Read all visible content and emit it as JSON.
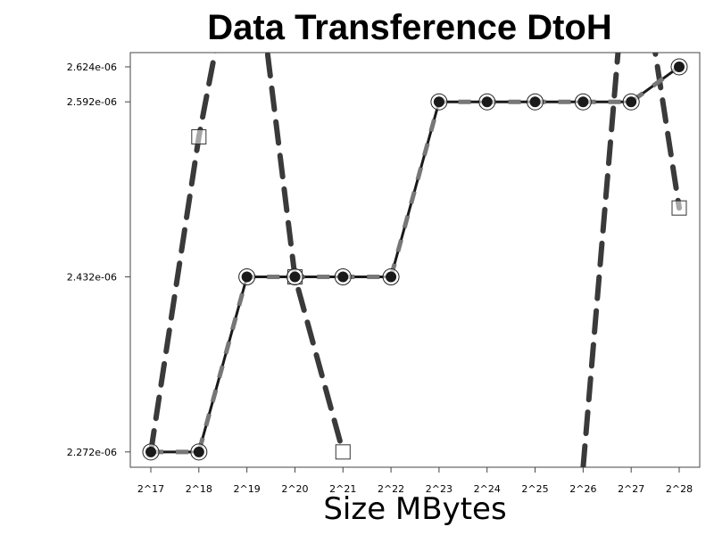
{
  "chart_data": {
    "type": "line",
    "title": "Data Transference DtoH",
    "xlabel": "Size MBytes",
    "ylabel": "",
    "categories": [
      "2^17",
      "2^18",
      "2^19",
      "2^20",
      "2^21",
      "2^22",
      "2^23",
      "2^24",
      "2^25",
      "2^26",
      "2^27",
      "2^28"
    ],
    "yticks": [
      {
        "value": 2.272e-06,
        "label": "2.272e-06"
      },
      {
        "value": 2.432e-06,
        "label": "2.432e-06"
      },
      {
        "value": 2.592e-06,
        "label": "2.592e-06"
      },
      {
        "value": 2.624e-06,
        "label": "2.624e-06"
      }
    ],
    "ylim": [
      2.258e-06,
      2.637e-06
    ],
    "grid": false,
    "legend": "none",
    "series": [
      {
        "style": "solid line with circle markers and grey dashed overlay",
        "color": "#1a1a1a",
        "marker": "circle",
        "values": [
          2.272e-06,
          2.272e-06,
          2.432e-06,
          2.432e-06,
          2.432e-06,
          2.432e-06,
          2.592e-06,
          2.592e-06,
          2.592e-06,
          2.592e-06,
          2.592e-06,
          2.624e-06
        ]
      },
      {
        "style": "thick dashed line with square markers",
        "color": "#3a3a3a",
        "marker": "square",
        "points": [
          {
            "x": "2^17",
            "y": 2.272e-06
          },
          {
            "x": "2^18",
            "y": 2.56e-06
          },
          {
            "x": "2^19",
            "y": 2.79e-06
          },
          {
            "x": "2^20",
            "y": 2.432e-06
          },
          {
            "x": "2^21",
            "y": 2.272e-06
          }
        ],
        "markers_at": [
          "2^18",
          "2^20",
          "2^21"
        ]
      },
      {
        "style": "thick dashed line with square markers",
        "color": "#3a3a3a",
        "marker": "square",
        "points": [
          {
            "x": "2^26",
            "y": 2.258e-06
          },
          {
            "x": "2^27",
            "y": 2.78e-06
          },
          {
            "x": "2^28",
            "y": 2.495e-06
          }
        ],
        "markers_at": [
          "2^28"
        ]
      }
    ]
  }
}
